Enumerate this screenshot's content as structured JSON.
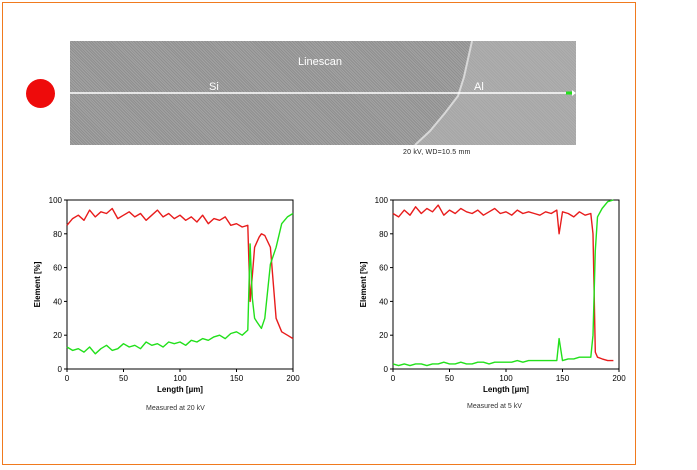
{
  "sem_image": {
    "title": "Linescan",
    "label_left": "Si",
    "label_right": "Al",
    "scale_text": "20 kV, WD=10.5 mm"
  },
  "colors": {
    "frame": "#f07a1e",
    "si_line": "#e81c1c",
    "al_line": "#22e01b",
    "marker": "#ee0b0b"
  },
  "chart_data": [
    {
      "type": "line",
      "caption": "Measured at 20 kV",
      "xlabel": "Length [µm]",
      "ylabel": "Element [%]",
      "xlim": [
        0,
        200
      ],
      "ylim": [
        0,
        100
      ],
      "xticks": [
        0,
        50,
        100,
        150,
        200
      ],
      "yticks": [
        0,
        20,
        40,
        60,
        80,
        100
      ],
      "series": [
        {
          "name": "Si",
          "color": "#e81c1c",
          "x": [
            0,
            5,
            10,
            15,
            20,
            25,
            30,
            35,
            40,
            45,
            50,
            55,
            60,
            65,
            70,
            75,
            80,
            85,
            90,
            95,
            100,
            105,
            110,
            115,
            120,
            125,
            130,
            135,
            140,
            145,
            150,
            155,
            160,
            162,
            164,
            166,
            168,
            170,
            172,
            175,
            180,
            185,
            190,
            195,
            200
          ],
          "y": [
            85,
            89,
            91,
            88,
            94,
            90,
            93,
            92,
            95,
            89,
            91,
            93,
            90,
            92,
            88,
            91,
            94,
            90,
            92,
            89,
            91,
            88,
            90,
            87,
            91,
            86,
            89,
            88,
            90,
            85,
            86,
            84,
            85,
            40,
            55,
            72,
            75,
            78,
            80,
            79,
            72,
            30,
            22,
            20,
            18
          ]
        },
        {
          "name": "Al",
          "color": "#22e01b",
          "x": [
            0,
            5,
            10,
            15,
            20,
            25,
            30,
            35,
            40,
            45,
            50,
            55,
            60,
            65,
            70,
            75,
            80,
            85,
            90,
            95,
            100,
            105,
            110,
            115,
            120,
            125,
            130,
            135,
            140,
            145,
            150,
            155,
            160,
            162,
            164,
            166,
            168,
            170,
            172,
            175,
            180,
            185,
            190,
            195,
            200
          ],
          "y": [
            13,
            11,
            12,
            10,
            13,
            9,
            12,
            14,
            11,
            12,
            15,
            13,
            14,
            12,
            16,
            14,
            15,
            13,
            16,
            15,
            16,
            14,
            17,
            16,
            18,
            17,
            19,
            20,
            18,
            21,
            22,
            20,
            23,
            74,
            42,
            30,
            28,
            26,
            24,
            30,
            62,
            72,
            86,
            90,
            92
          ]
        }
      ]
    },
    {
      "type": "line",
      "caption": "Measured at 5 kV",
      "xlabel": "Length [µm]",
      "ylabel": "Element [%]",
      "xlim": [
        0,
        200
      ],
      "ylim": [
        0,
        100
      ],
      "xticks": [
        0,
        50,
        100,
        150,
        200
      ],
      "yticks": [
        0,
        20,
        40,
        60,
        80,
        100
      ],
      "series": [
        {
          "name": "Si",
          "color": "#e81c1c",
          "x": [
            0,
            5,
            10,
            15,
            20,
            25,
            30,
            35,
            40,
            45,
            50,
            55,
            60,
            65,
            70,
            75,
            80,
            85,
            90,
            95,
            100,
            105,
            110,
            115,
            120,
            125,
            130,
            135,
            140,
            145,
            147,
            150,
            155,
            160,
            165,
            170,
            175,
            177,
            179,
            181,
            185,
            190,
            195
          ],
          "y": [
            92,
            90,
            94,
            91,
            96,
            92,
            95,
            93,
            97,
            91,
            94,
            92,
            95,
            93,
            92,
            94,
            91,
            93,
            95,
            92,
            93,
            91,
            94,
            92,
            93,
            92,
            91,
            93,
            92,
            94,
            80,
            93,
            92,
            90,
            93,
            91,
            92,
            80,
            10,
            7,
            6,
            5,
            5
          ]
        },
        {
          "name": "Al",
          "color": "#22e01b",
          "x": [
            0,
            5,
            10,
            15,
            20,
            25,
            30,
            35,
            40,
            45,
            50,
            55,
            60,
            65,
            70,
            75,
            80,
            85,
            90,
            95,
            100,
            105,
            110,
            115,
            120,
            125,
            130,
            135,
            140,
            145,
            147,
            150,
            155,
            160,
            165,
            170,
            175,
            177,
            179,
            181,
            185,
            190,
            195
          ],
          "y": [
            3,
            2,
            3,
            2,
            3,
            3,
            2,
            3,
            3,
            4,
            3,
            3,
            4,
            3,
            3,
            4,
            4,
            3,
            4,
            4,
            4,
            4,
            5,
            4,
            5,
            5,
            5,
            5,
            5,
            5,
            18,
            5,
            6,
            6,
            7,
            7,
            7,
            20,
            70,
            90,
            95,
            99,
            100
          ]
        }
      ]
    }
  ]
}
